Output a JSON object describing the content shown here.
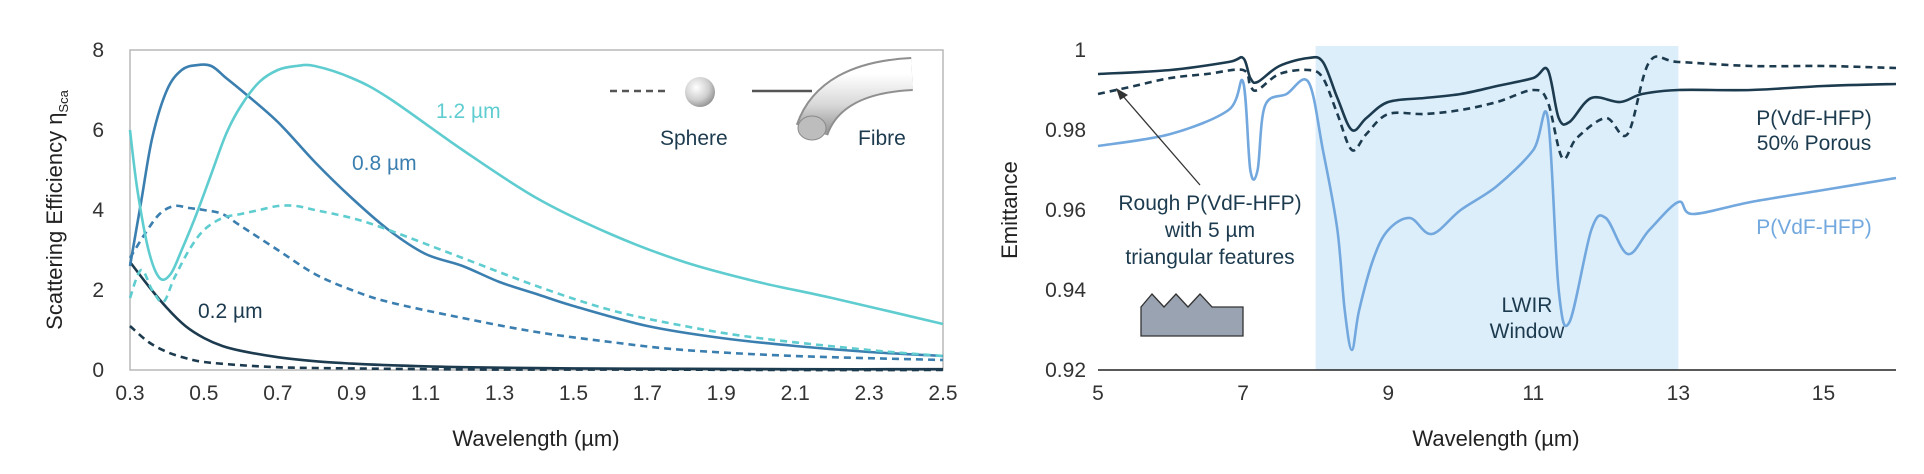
{
  "chart_data": [
    {
      "type": "line",
      "title": "",
      "xlabel": "Wavelength (µm)",
      "ylabel": "Scattering Efficiency η",
      "ylabel_sub": "Sca",
      "xlim": [
        0.3,
        2.5
      ],
      "ylim": [
        0,
        8
      ],
      "xticks": [
        "0.3",
        "0.5",
        "0.7",
        "0.9",
        "1.1",
        "1.3",
        "1.5",
        "1.7",
        "1.9",
        "2.1",
        "2.3",
        "2.5"
      ],
      "yticks": [
        "0",
        "2",
        "4",
        "6",
        "8"
      ],
      "grid": false,
      "legend": {
        "placement": "top-right",
        "sphere_label": "Sphere",
        "fibre_label": "Fibre"
      },
      "colors": {
        "0.2": "#1d3b4f",
        "0.8": "#3b7fb0",
        "1.2": "#5fcdd0"
      },
      "size_labels": [
        "0.2 µm",
        "0.8 µm",
        "1.2 µm"
      ],
      "series": [
        {
          "size": "0.2",
          "shape": "fibre",
          "dash": "solid",
          "x": [
            0.3,
            0.35,
            0.4,
            0.45,
            0.5,
            0.55,
            0.6,
            0.7,
            0.8,
            0.9,
            1.0,
            1.2,
            1.5,
            1.8,
            2.1,
            2.5
          ],
          "y": [
            2.7,
            2.1,
            1.55,
            1.1,
            0.8,
            0.6,
            0.48,
            0.32,
            0.22,
            0.16,
            0.12,
            0.07,
            0.04,
            0.03,
            0.02,
            0.02
          ]
        },
        {
          "size": "0.2",
          "shape": "sphere",
          "dash": "dashed",
          "x": [
            0.3,
            0.35,
            0.4,
            0.45,
            0.5,
            0.6,
            0.7,
            0.8,
            1.0,
            1.3,
            1.7,
            2.1,
            2.5
          ],
          "y": [
            1.1,
            0.7,
            0.45,
            0.3,
            0.2,
            0.12,
            0.07,
            0.05,
            0.03,
            0.01,
            0.01,
            0.0,
            0.0
          ]
        },
        {
          "size": "0.8",
          "shape": "fibre",
          "dash": "solid",
          "x": [
            0.3,
            0.33,
            0.36,
            0.4,
            0.44,
            0.48,
            0.52,
            0.56,
            0.6,
            0.7,
            0.8,
            0.9,
            1.0,
            1.1,
            1.2,
            1.3,
            1.4,
            1.5,
            1.7,
            1.9,
            2.1,
            2.3,
            2.5
          ],
          "y": [
            2.6,
            4.2,
            5.8,
            7.0,
            7.5,
            7.62,
            7.6,
            7.3,
            7.0,
            6.2,
            5.2,
            4.3,
            3.5,
            2.9,
            2.6,
            2.2,
            1.9,
            1.6,
            1.1,
            0.8,
            0.6,
            0.45,
            0.35
          ]
        },
        {
          "size": "0.8",
          "shape": "sphere",
          "dash": "dashed",
          "x": [
            0.3,
            0.34,
            0.38,
            0.42,
            0.46,
            0.5,
            0.55,
            0.6,
            0.7,
            0.8,
            0.9,
            1.0,
            1.2,
            1.4,
            1.6,
            1.8,
            2.1,
            2.5
          ],
          "y": [
            2.8,
            3.4,
            3.9,
            4.1,
            4.05,
            4.0,
            3.9,
            3.6,
            3.0,
            2.4,
            2.0,
            1.7,
            1.3,
            0.95,
            0.7,
            0.5,
            0.35,
            0.25
          ]
        },
        {
          "size": "1.2",
          "shape": "fibre",
          "dash": "solid",
          "x": [
            0.3,
            0.32,
            0.35,
            0.38,
            0.41,
            0.44,
            0.48,
            0.52,
            0.56,
            0.6,
            0.65,
            0.7,
            0.75,
            0.8,
            0.9,
            1.0,
            1.2,
            1.4,
            1.6,
            1.8,
            2.0,
            2.2,
            2.5
          ],
          "y": [
            6.0,
            4.5,
            3.0,
            2.3,
            2.4,
            3.0,
            3.9,
            4.9,
            5.9,
            6.6,
            7.2,
            7.5,
            7.6,
            7.6,
            7.3,
            6.8,
            5.5,
            4.3,
            3.4,
            2.7,
            2.2,
            1.8,
            1.15
          ]
        },
        {
          "size": "1.2",
          "shape": "sphere",
          "dash": "dashed",
          "x": [
            0.3,
            0.33,
            0.36,
            0.39,
            0.42,
            0.46,
            0.5,
            0.55,
            0.6,
            0.65,
            0.7,
            0.75,
            0.8,
            0.9,
            1.0,
            1.2,
            1.4,
            1.6,
            1.8,
            2.0,
            2.3,
            2.5
          ],
          "y": [
            1.8,
            2.5,
            2.0,
            1.7,
            2.3,
            3.0,
            3.5,
            3.8,
            3.9,
            4.0,
            4.1,
            4.1,
            4.0,
            3.8,
            3.5,
            2.8,
            2.1,
            1.5,
            1.1,
            0.8,
            0.5,
            0.35
          ]
        }
      ]
    },
    {
      "type": "line",
      "title": "",
      "xlabel": "Wavelength (µm)",
      "ylabel": "Emittance",
      "xlim": [
        5,
        16
      ],
      "ylim": [
        0.92,
        1.0
      ],
      "xticks": [
        "5",
        "7",
        "9",
        "11",
        "13",
        "15"
      ],
      "yticks": [
        "0.92",
        "0.94",
        "0.96",
        "0.98",
        "1"
      ],
      "grid": false,
      "shaded_region": {
        "x": [
          8,
          13
        ],
        "label_lines": [
          "LWIR",
          "Window"
        ],
        "color": "#ddeefb"
      },
      "annotations": {
        "rough_lines": [
          "Rough P(VdF-HFP)",
          "with 5 µm",
          "triangular features"
        ],
        "porous_lines": [
          "P(VdF-HFP)",
          "50% Porous"
        ],
        "dense_label": "P(VdF-HFP)"
      },
      "colors": {
        "porous": "#1d3b4f",
        "rough": "#1d3b4f",
        "dense": "#72a8de",
        "inset": "#9aa3b2"
      },
      "series": [
        {
          "id": "porous",
          "dash": "solid",
          "x": [
            5,
            6,
            6.8,
            7.0,
            7.1,
            7.2,
            7.5,
            7.9,
            8.1,
            8.3,
            8.5,
            8.7,
            9.0,
            9.5,
            10,
            10.5,
            11.0,
            11.2,
            11.35,
            11.5,
            11.8,
            12.2,
            12.5,
            13,
            14,
            15,
            16
          ],
          "y": [
            0.994,
            0.995,
            0.997,
            0.998,
            0.993,
            0.992,
            0.996,
            0.998,
            0.997,
            0.988,
            0.98,
            0.983,
            0.987,
            0.988,
            0.989,
            0.991,
            0.993,
            0.995,
            0.983,
            0.982,
            0.988,
            0.987,
            0.989,
            0.99,
            0.99,
            0.991,
            0.9915
          ]
        },
        {
          "id": "rough",
          "dash": "dashed",
          "x": [
            5,
            5.5,
            6,
            6.5,
            7.0,
            7.1,
            7.2,
            7.5,
            7.9,
            8.1,
            8.3,
            8.5,
            8.7,
            9.0,
            9.5,
            10,
            10.5,
            11.0,
            11.2,
            11.4,
            11.6,
            12.0,
            12.3,
            12.6,
            13,
            14,
            15,
            16
          ],
          "y": [
            0.989,
            0.991,
            0.993,
            0.994,
            0.995,
            0.991,
            0.99,
            0.994,
            0.995,
            0.993,
            0.984,
            0.975,
            0.979,
            0.984,
            0.984,
            0.985,
            0.987,
            0.99,
            0.987,
            0.973,
            0.978,
            0.983,
            0.979,
            0.997,
            0.997,
            0.996,
            0.996,
            0.9955
          ]
        },
        {
          "id": "dense",
          "dash": "solid",
          "x": [
            5,
            6,
            6.8,
            7.0,
            7.1,
            7.2,
            7.3,
            7.6,
            7.9,
            8.1,
            8.3,
            8.4,
            8.5,
            8.6,
            8.8,
            9.0,
            9.3,
            9.6,
            10.0,
            10.5,
            11.0,
            11.2,
            11.35,
            11.5,
            11.8,
            12.0,
            12.3,
            12.6,
            13.0,
            13.2,
            14,
            15,
            16
          ],
          "y": [
            0.976,
            0.979,
            0.985,
            0.992,
            0.97,
            0.97,
            0.986,
            0.989,
            0.992,
            0.975,
            0.955,
            0.935,
            0.925,
            0.935,
            0.948,
            0.955,
            0.958,
            0.954,
            0.96,
            0.966,
            0.975,
            0.983,
            0.94,
            0.932,
            0.955,
            0.958,
            0.949,
            0.955,
            0.962,
            0.959,
            0.962,
            0.965,
            0.968
          ]
        }
      ]
    }
  ]
}
